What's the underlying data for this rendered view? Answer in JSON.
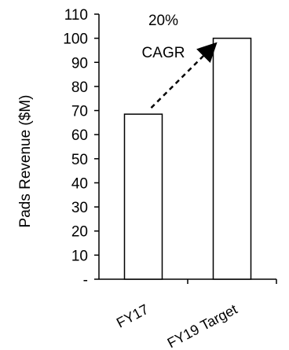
{
  "chart_data": {
    "type": "bar",
    "title": "",
    "xlabel": "",
    "ylabel": "Pads Revenue ($M)",
    "categories": [
      "FY17",
      "FY19 Target"
    ],
    "values": [
      68.5,
      100
    ],
    "ylim": [
      0,
      110
    ],
    "yticks": [
      0,
      10,
      20,
      30,
      40,
      50,
      60,
      70,
      80,
      90,
      100,
      110
    ],
    "ytick_labels": [
      "-",
      "10",
      "20",
      "30",
      "40",
      "50",
      "60",
      "70",
      "80",
      "90",
      "100",
      "110"
    ],
    "grid": false,
    "legend": "none",
    "bar_fill": "#ffffff",
    "bar_stroke": "#000000",
    "annotation": {
      "line1": "20%",
      "line2": "CAGR",
      "arrow_style": "dashed",
      "arrow_from_category": "FY17",
      "arrow_to_category": "FY19 Target"
    }
  }
}
